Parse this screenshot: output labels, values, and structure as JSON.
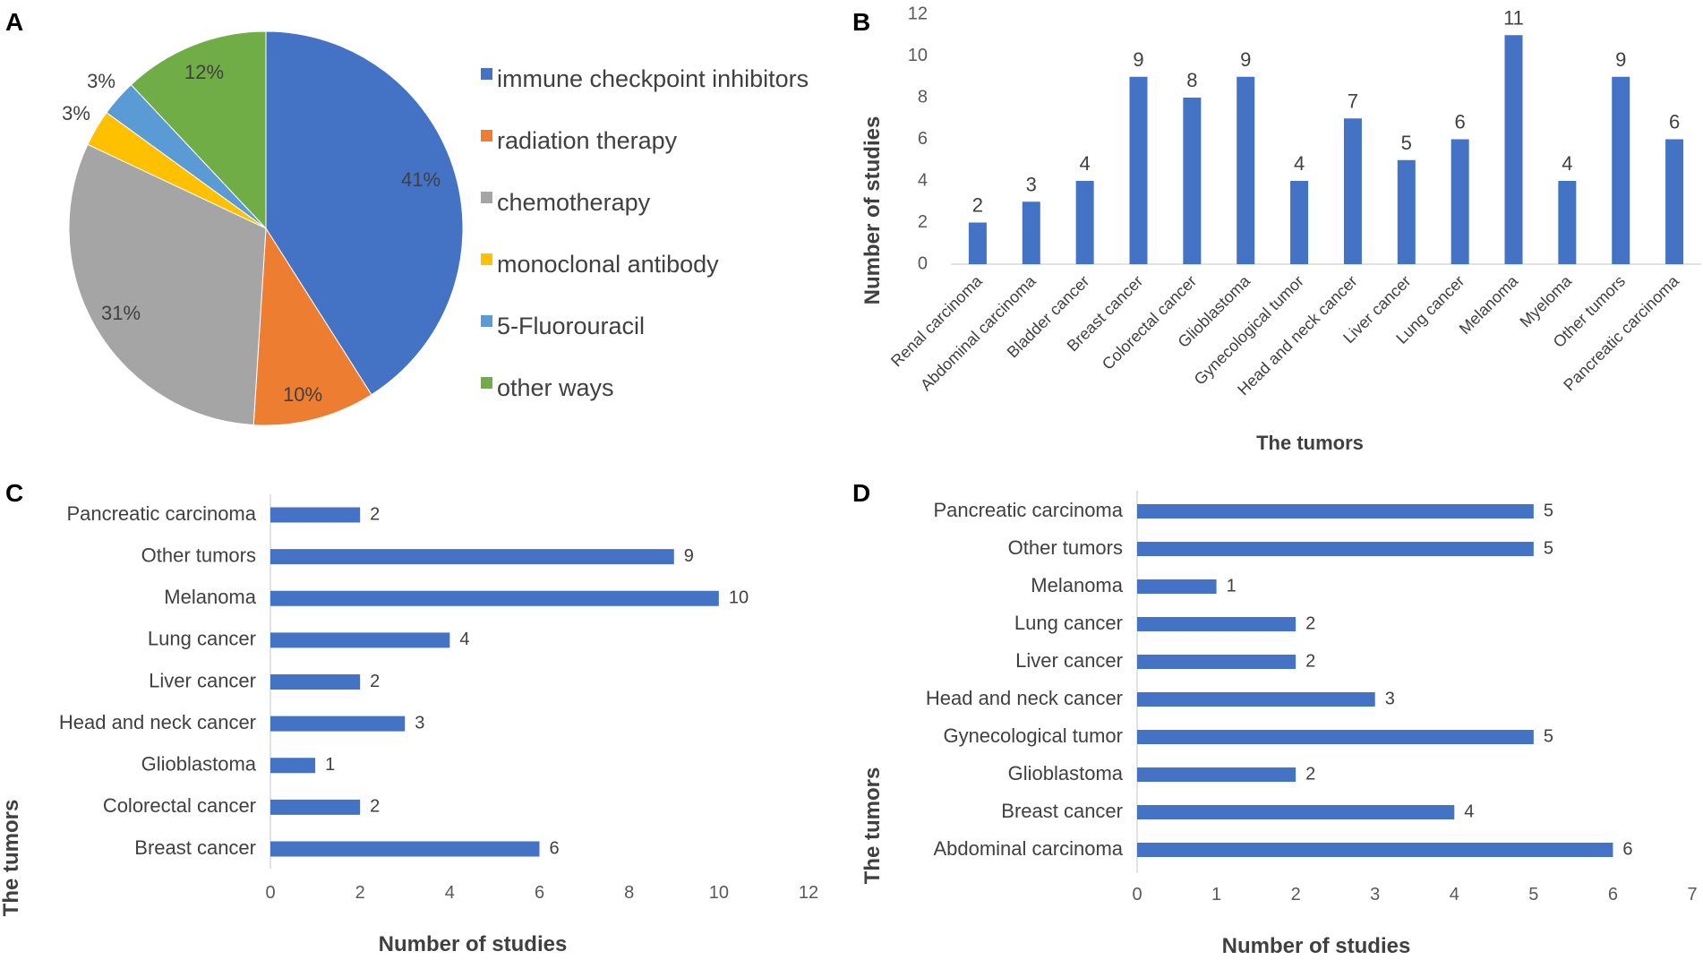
{
  "panels": {
    "a": "A",
    "b": "B",
    "c": "C",
    "d": "D"
  },
  "chart_data": [
    {
      "id": "A",
      "type": "pie",
      "title": "",
      "labels": [
        "immune checkpoint inhibitors",
        "radiation therapy",
        "chemotherapy",
        "monoclonal antibody",
        "5-Fluorouracil",
        "other ways"
      ],
      "values": [
        41,
        10,
        31,
        3,
        3,
        12
      ],
      "value_labels": [
        "41%",
        "10%",
        "31%",
        "3%",
        "3%",
        "12%"
      ],
      "colors": [
        "#4472C4",
        "#ED7D31",
        "#A5A5A5",
        "#FFC000",
        "#5B9BD5",
        "#70AD47"
      ],
      "legend": "right"
    },
    {
      "id": "B",
      "type": "bar",
      "orientation": "vertical",
      "categories": [
        "Renal carcinoma",
        "Abdominal carcinoma",
        "Bladder cancer",
        "Breast cancer",
        "Colorectal cancer",
        "Glioblastoma",
        "Gynecological tumor",
        "Head and neck cancer",
        "Liver cancer",
        "Lung cancer",
        "Melanoma",
        "Myeloma",
        "Other tumors",
        "Pancreatic carcinoma"
      ],
      "values": [
        2,
        3,
        4,
        9,
        8,
        9,
        4,
        7,
        5,
        6,
        11,
        4,
        9,
        6
      ],
      "xlabel": "The tumors",
      "ylabel": "Number of studies",
      "ylim": [
        0,
        12
      ],
      "yticks": [
        0,
        2,
        4,
        6,
        8,
        10,
        12
      ],
      "color": "#4472C4"
    },
    {
      "id": "C",
      "type": "bar",
      "orientation": "horizontal",
      "categories": [
        "Pancreatic carcinoma",
        "Other tumors",
        "Melanoma",
        "Lung cancer",
        "Liver cancer",
        "Head and neck cancer",
        "Glioblastoma",
        "Colorectal cancer",
        "Breast cancer"
      ],
      "values": [
        2,
        9,
        10,
        4,
        2,
        3,
        1,
        2,
        6
      ],
      "xlabel": "Number of studies",
      "ylabel": "The tumors",
      "xlim": [
        0,
        12
      ],
      "xticks": [
        0,
        2,
        4,
        6,
        8,
        10,
        12
      ],
      "color": "#4472C4"
    },
    {
      "id": "D",
      "type": "bar",
      "orientation": "horizontal",
      "categories": [
        "Pancreatic carcinoma",
        "Other tumors",
        "Melanoma",
        "Lung cancer",
        "Liver cancer",
        "Head and neck cancer",
        "Gynecological tumor",
        "Glioblastoma",
        "Breast cancer",
        "Abdominal carcinoma"
      ],
      "values": [
        5,
        5,
        1,
        2,
        2,
        3,
        5,
        2,
        4,
        6
      ],
      "xlabel": "Number of studies",
      "ylabel": "The tumors",
      "xlim": [
        0,
        7
      ],
      "xticks": [
        0,
        1,
        2,
        3,
        4,
        5,
        6,
        7
      ],
      "color": "#4472C4"
    }
  ]
}
